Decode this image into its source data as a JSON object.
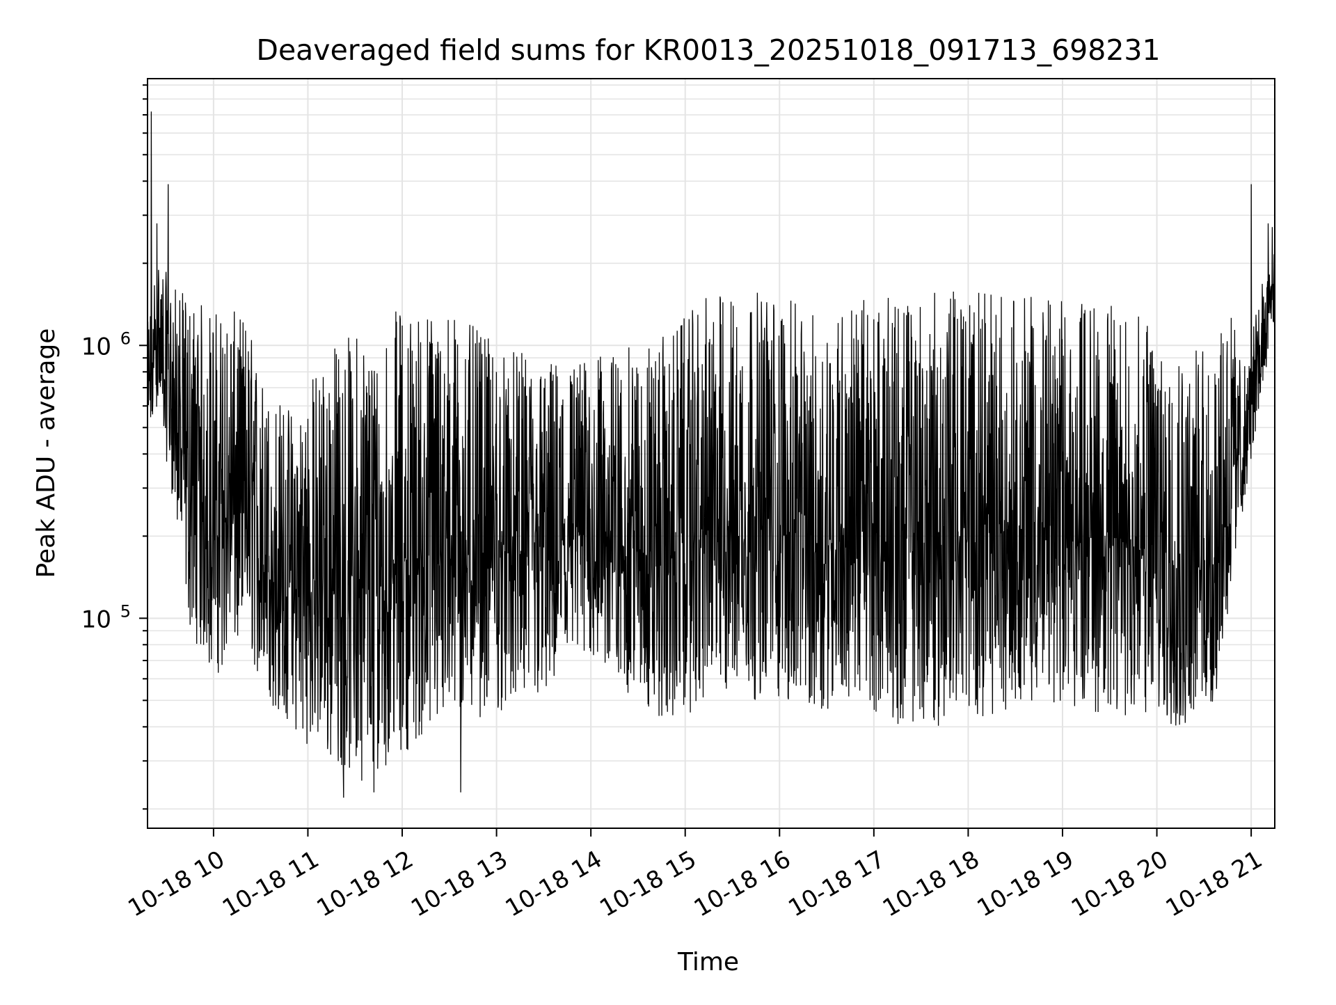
{
  "chart_data": {
    "type": "line",
    "title": "Deaveraged field sums for KR0013_20251018_091713_698231",
    "xlabel": "Time",
    "ylabel": "Peak ADU - average",
    "yscale": "log",
    "ylim": [
      17000,
      9500000
    ],
    "xlim_hours": [
      9.3,
      21.25
    ],
    "grid": true,
    "legend": null,
    "x_ticks": [
      {
        "hour": 10,
        "label": "10-18 10"
      },
      {
        "hour": 11,
        "label": "10-18 11"
      },
      {
        "hour": 12,
        "label": "10-18 12"
      },
      {
        "hour": 13,
        "label": "10-18 13"
      },
      {
        "hour": 14,
        "label": "10-18 14"
      },
      {
        "hour": 15,
        "label": "10-18 15"
      },
      {
        "hour": 16,
        "label": "10-18 16"
      },
      {
        "hour": 17,
        "label": "10-18 17"
      },
      {
        "hour": 18,
        "label": "10-18 18"
      },
      {
        "hour": 19,
        "label": "10-18 19"
      },
      {
        "hour": 20,
        "label": "10-18 20"
      },
      {
        "hour": 21,
        "label": "10-18 21"
      }
    ],
    "y_ticks": [
      {
        "value": 100000,
        "base": "10",
        "exp": "5"
      },
      {
        "value": 1000000,
        "base": "10",
        "exp": "6"
      }
    ],
    "series": [
      {
        "name": "Peak ADU - average",
        "color": "#000000",
        "envelope": [
          {
            "hour": 9.3,
            "low": 350000,
            "high": 1200000
          },
          {
            "hour": 9.4,
            "low": 600000,
            "high": 2200000
          },
          {
            "hour": 9.55,
            "low": 300000,
            "high": 1700000
          },
          {
            "hour": 9.75,
            "low": 90000,
            "high": 1500000
          },
          {
            "hour": 10.0,
            "low": 60000,
            "high": 1400000
          },
          {
            "hour": 10.35,
            "low": 80000,
            "high": 1300000
          },
          {
            "hour": 10.55,
            "low": 50000,
            "high": 700000
          },
          {
            "hour": 10.85,
            "low": 38000,
            "high": 600000
          },
          {
            "hour": 11.2,
            "low": 30000,
            "high": 1000000
          },
          {
            "hour": 11.6,
            "low": 25000,
            "high": 1200000
          },
          {
            "hour": 12.0,
            "low": 32000,
            "high": 1400000
          },
          {
            "hour": 12.5,
            "low": 40000,
            "high": 1400000
          },
          {
            "hour": 13.0,
            "low": 45000,
            "high": 1000000
          },
          {
            "hour": 13.5,
            "low": 48000,
            "high": 900000
          },
          {
            "hour": 14.0,
            "low": 70000,
            "high": 900000
          },
          {
            "hour": 14.45,
            "low": 50000,
            "high": 1000000
          },
          {
            "hour": 14.8,
            "low": 40000,
            "high": 1100000
          },
          {
            "hour": 15.3,
            "low": 50000,
            "high": 1600000
          },
          {
            "hour": 15.9,
            "low": 50000,
            "high": 1600000
          },
          {
            "hour": 16.4,
            "low": 45000,
            "high": 1300000
          },
          {
            "hour": 16.8,
            "low": 50000,
            "high": 1500000
          },
          {
            "hour": 17.3,
            "low": 40000,
            "high": 1500000
          },
          {
            "hour": 17.8,
            "low": 40000,
            "high": 1600000
          },
          {
            "hour": 18.3,
            "low": 45000,
            "high": 1600000
          },
          {
            "hour": 18.8,
            "low": 50000,
            "high": 1500000
          },
          {
            "hour": 19.3,
            "low": 45000,
            "high": 1500000
          },
          {
            "hour": 19.8,
            "low": 42000,
            "high": 1300000
          },
          {
            "hour": 20.3,
            "low": 38000,
            "high": 1100000
          },
          {
            "hour": 20.6,
            "low": 40000,
            "high": 900000
          },
          {
            "hour": 20.75,
            "low": 100000,
            "high": 1500000
          },
          {
            "hour": 20.95,
            "low": 300000,
            "high": 800000
          },
          {
            "hour": 21.2,
            "low": 1000000,
            "high": 2800000
          }
        ],
        "peaks": [
          {
            "hour": 9.34,
            "value": 7200000
          },
          {
            "hour": 9.52,
            "value": 3900000
          },
          {
            "hour": 9.4,
            "value": 2800000
          },
          {
            "hour": 21.0,
            "value": 3900000
          },
          {
            "hour": 21.18,
            "value": 2800000
          },
          {
            "hour": 11.38,
            "value": 22000
          },
          {
            "hour": 11.7,
            "value": 23000
          },
          {
            "hour": 12.62,
            "value": 23000
          }
        ]
      }
    ]
  }
}
